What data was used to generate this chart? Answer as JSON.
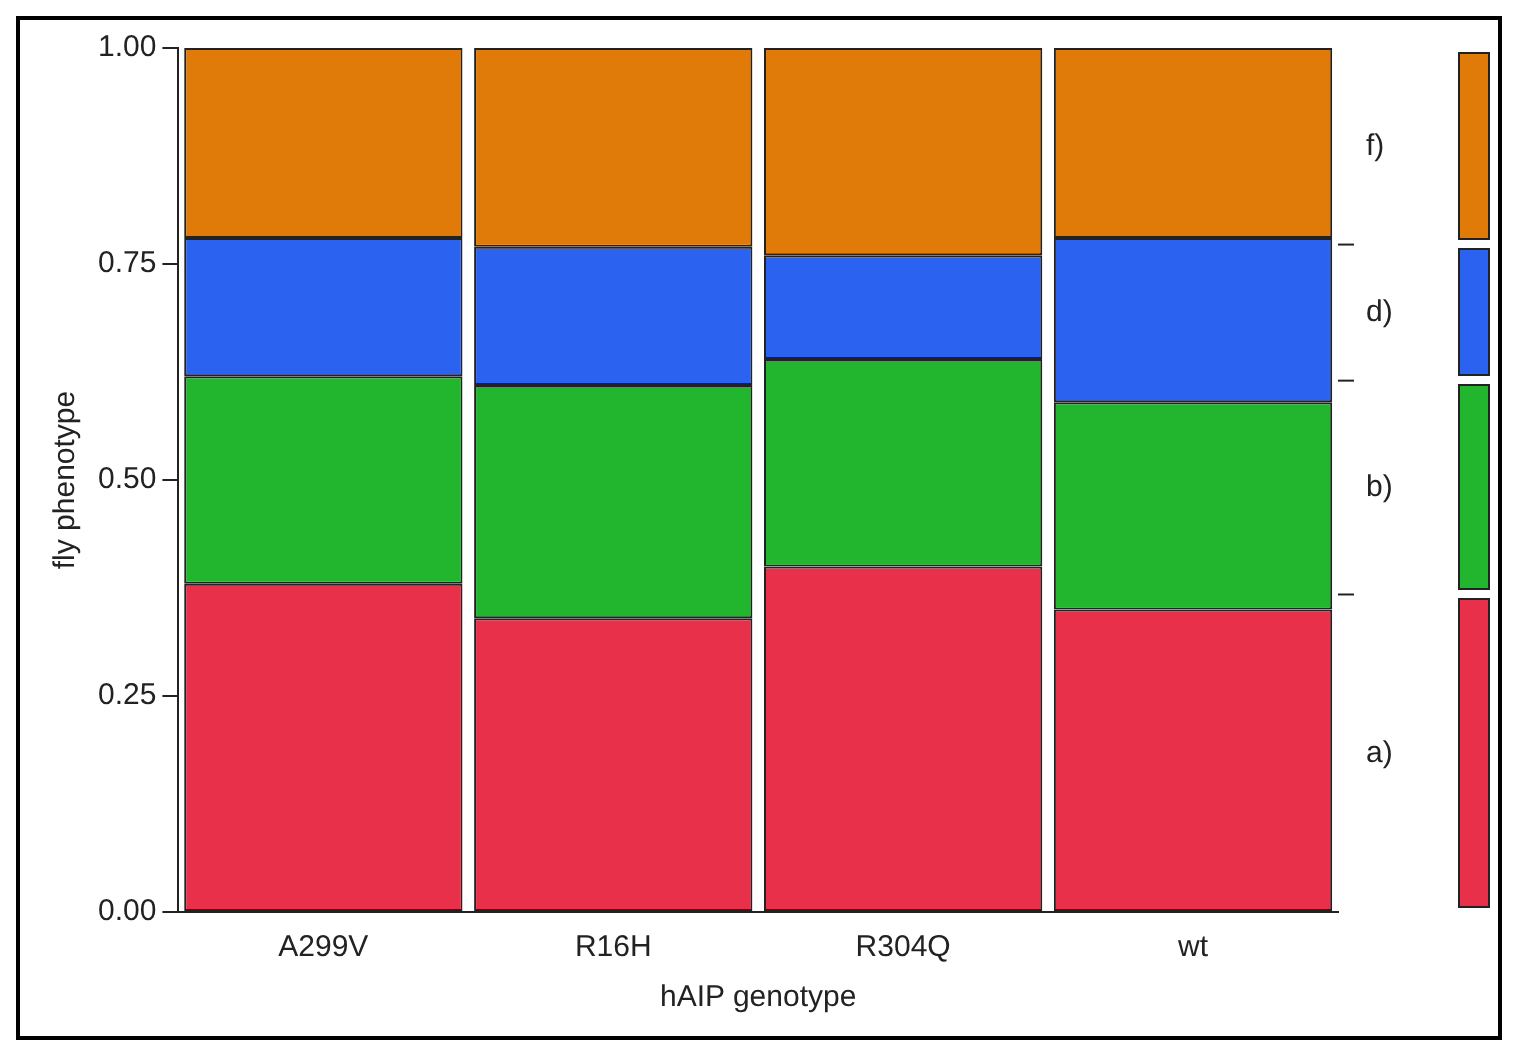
{
  "chart_data": {
    "type": "bar",
    "stacked": true,
    "xlabel": "hAIP genotype",
    "ylabel": "fly phenotype",
    "categories": [
      "A299V",
      "R16H",
      "R304Q",
      "wt"
    ],
    "series": [
      {
        "name": "a)",
        "color": "#e8304a",
        "values": [
          0.38,
          0.34,
          0.4,
          0.35
        ]
      },
      {
        "name": "b)",
        "color": "#22b52e",
        "values": [
          0.24,
          0.27,
          0.24,
          0.24
        ]
      },
      {
        "name": "d)",
        "color": "#2c62f0",
        "values": [
          0.16,
          0.16,
          0.12,
          0.19
        ]
      },
      {
        "name": "f)",
        "color": "#e07b0a",
        "values": [
          0.22,
          0.23,
          0.24,
          0.22
        ]
      }
    ],
    "ylim": [
      0,
      1
    ],
    "yticks": [
      {
        "value": 0,
        "label": "0.00"
      },
      {
        "value": 0.25,
        "label": "0.25"
      },
      {
        "value": 0.5,
        "label": "0.50"
      },
      {
        "value": 0.75,
        "label": "0.75"
      },
      {
        "value": 1,
        "label": "1.00"
      }
    ],
    "grid": false,
    "legend": "right"
  }
}
